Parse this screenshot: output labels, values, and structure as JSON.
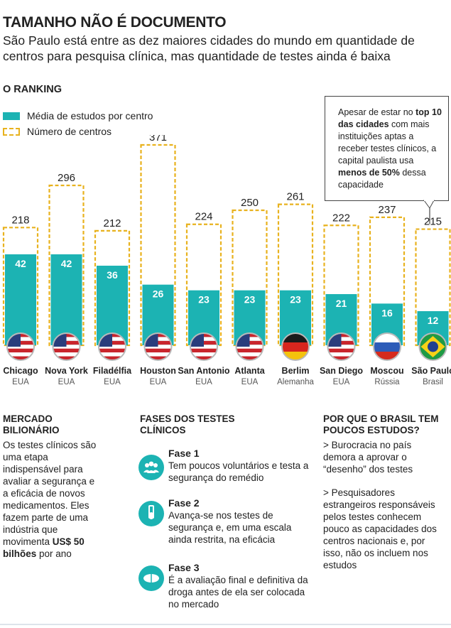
{
  "title": "TAMANHO NÃO É DOCUMENTO",
  "subtitle": "São Paulo está entre as dez maiores cidades do mundo em quantidade de centros para pesquisa clínica, mas quantidade de testes ainda é baixa",
  "ranking_label": "O RANKING",
  "legend": {
    "fill_label": "Média de estudos por centro",
    "outline_label": "Número de centros"
  },
  "callout": {
    "t1": "Apesar de estar no ",
    "b1": "top 10 das cidades",
    "t2": " com mais instituições aptas a receber testes clínicos, a capital paulista usa ",
    "b2": "menos de 50%",
    "t3": " dessa capacidade"
  },
  "colors": {
    "fill": "#1cb3b3",
    "outline": "#e8b21e"
  },
  "chart_data": {
    "type": "bar",
    "categories": [
      "Chicago",
      "Nova York",
      "Filadélfia",
      "Houston",
      "San Antonio",
      "Atlanta",
      "Berlim",
      "San Diego",
      "Moscou",
      "São Paulo"
    ],
    "countries": [
      "EUA",
      "EUA",
      "EUA",
      "EUA",
      "EUA",
      "EUA",
      "Alemanha",
      "EUA",
      "Rússia",
      "Brasil"
    ],
    "flags": [
      "us-flag-icon",
      "us-flag-icon",
      "us-flag-icon",
      "us-flag-icon",
      "us-flag-icon",
      "us-flag-icon",
      "germany-flag-icon",
      "us-flag-icon",
      "russia-flag-icon",
      "brazil-flag-icon"
    ],
    "series": [
      {
        "name": "Número de centros",
        "style": "dashed-outline",
        "values": [
          218,
          296,
          212,
          371,
          224,
          250,
          261,
          222,
          237,
          215
        ]
      },
      {
        "name": "Média de estudos por centro",
        "style": "filled",
        "values": [
          42,
          42,
          36,
          26,
          23,
          23,
          23,
          21,
          16,
          12
        ]
      }
    ],
    "ylim": [
      0,
      371
    ]
  },
  "sections": {
    "market": {
      "heading": "MERCADO BILIONÁRIO",
      "text1": "Os testes clínicos são uma etapa indispensável para avaliar a segurança e a eficácia de novos medicamentos. Eles fazem parte de uma indústria que movimenta ",
      "bold": "US$ 50 bilhões",
      "text2": " por ano"
    },
    "phases": {
      "heading": "FASES DOS TESTES CLÍNICOS",
      "items": [
        {
          "title": "Fase 1",
          "text": "Tem poucos voluntários e testa a segurança do remédio",
          "icon": "people-icon"
        },
        {
          "title": "Fase 2",
          "text": "Avança-se nos testes de segurança e, em uma escala ainda restrita, na eficácia",
          "icon": "test-tube-icon"
        },
        {
          "title": "Fase 3",
          "text": "É a avaliação final e definitiva da droga antes de ela ser colocada no mercado",
          "icon": "pill-icon"
        }
      ]
    },
    "why": {
      "heading": "POR QUE O BRASIL TEM POUCOS ESTUDOS?",
      "p1": "> Burocracia no país demora a aprovar o “desenho” dos testes",
      "p2": "> Pesquisadores estrangeiros responsáveis pelos testes conhecem pouco as capacidades dos centros nacionais e, por isso, não os incluem nos estudos"
    }
  }
}
